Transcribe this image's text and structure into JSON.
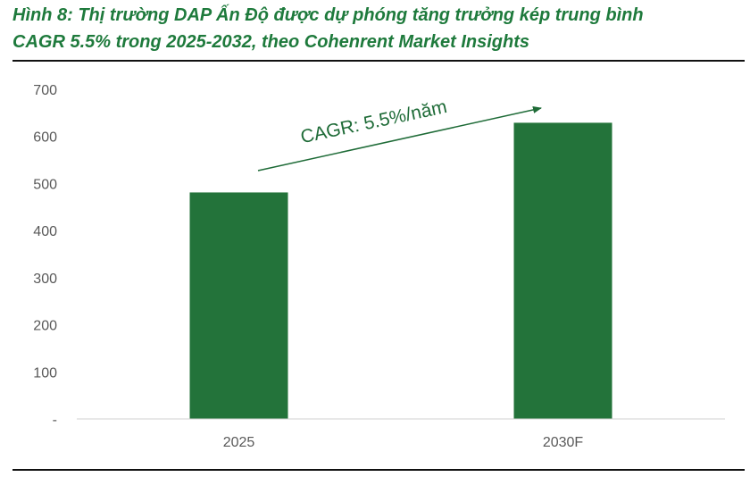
{
  "title": {
    "line1": "Hình 8: Thị trường DAP Ấn Độ được dự phóng tăng trưởng kép trung bình",
    "line2": "CAGR 5.5% trong 2025-2032, theo Cohenrent Market Insights"
  },
  "colors": {
    "bar": "#23733a",
    "title": "#1e7a3c",
    "annotation": "#1e6b37"
  },
  "chart_data": {
    "type": "bar",
    "categories": [
      "2025",
      "2030F"
    ],
    "values": [
      481,
      629
    ],
    "ylim": [
      0,
      700
    ],
    "yticks": [
      0,
      100,
      200,
      300,
      400,
      500,
      600,
      700
    ],
    "ytick_labels": [
      "-",
      "100",
      "200",
      "300",
      "400",
      "500",
      "600",
      "700"
    ],
    "grid": false,
    "annotation": "CAGR: 5.5%/năm"
  }
}
